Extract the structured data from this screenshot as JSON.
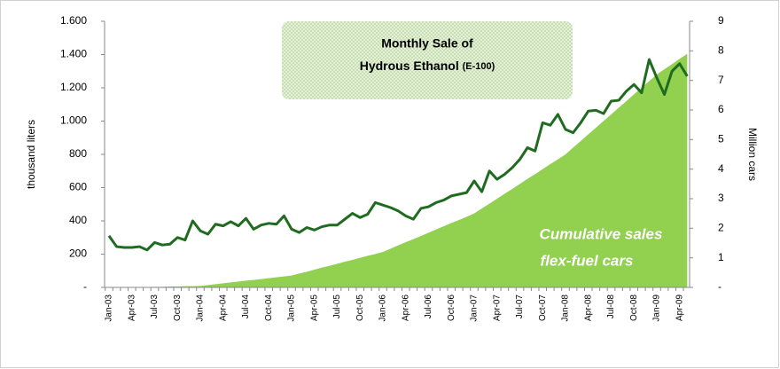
{
  "chart_data": {
    "type": "line",
    "title": [
      "Monthly Sale of",
      "Hydrous Ethanol",
      "(E-100)"
    ],
    "annotation": [
      "Cumulative sales",
      "flex-fuel cars"
    ],
    "ylabel": "thousand liters",
    "y2label": "Million cars",
    "categories": [
      "Jan-03",
      null,
      null,
      "Apr-03",
      null,
      null,
      "Jul-03",
      null,
      null,
      "Oct-03",
      null,
      null,
      "Jan-04",
      null,
      null,
      "Apr-04",
      null,
      null,
      "Jul-04",
      null,
      null,
      "Oct-04",
      null,
      null,
      "Jan-05",
      null,
      null,
      "Apr-05",
      null,
      null,
      "Jul-05",
      null,
      null,
      "Oct-05",
      null,
      null,
      "Jan-06",
      null,
      null,
      "Apr-06",
      null,
      null,
      "Jul-06",
      null,
      null,
      "Oct-06",
      null,
      null,
      "Jan-07",
      null,
      null,
      "Apr-07",
      null,
      null,
      "Jul-07",
      null,
      null,
      "Oct-07",
      null,
      null,
      "Jan-08",
      null,
      null,
      "Apr-08",
      null,
      null,
      "Jul-08",
      null,
      null,
      "Oct-08",
      null,
      null,
      "Jan-09",
      null,
      null,
      "Apr-09",
      null
    ],
    "series": [
      {
        "name": "Cumulative sales flex-fuel cars",
        "kind": "area",
        "axis": "y2",
        "color": "#92d050",
        "values": [
          0,
          0,
          0,
          0,
          0.01,
          0.01,
          0.02,
          0.02,
          0.03,
          0.03,
          0.04,
          0.04,
          0.05,
          0.08,
          0.11,
          0.14,
          0.17,
          0.2,
          0.23,
          0.25,
          0.28,
          0.31,
          0.34,
          0.37,
          0.4,
          0.47,
          0.53,
          0.6,
          0.67,
          0.73,
          0.8,
          0.87,
          0.93,
          1.0,
          1.07,
          1.13,
          1.2,
          1.31,
          1.42,
          1.53,
          1.63,
          1.74,
          1.85,
          1.96,
          2.07,
          2.18,
          2.28,
          2.39,
          2.5,
          2.67,
          2.83,
          3.0,
          3.17,
          3.33,
          3.5,
          3.67,
          3.83,
          4.0,
          4.17,
          4.33,
          4.5,
          4.73,
          4.95,
          5.18,
          5.4,
          5.63,
          5.85,
          6.08,
          6.3,
          6.53,
          6.75,
          6.98,
          7.2,
          7.38,
          7.55,
          7.73,
          7.9
        ]
      },
      {
        "name": "Monthly Sale of Hydrous Ethanol (E-100)",
        "kind": "line",
        "axis": "y",
        "color": "#1f6b1f",
        "values": [
          310,
          245,
          240,
          240,
          245,
          225,
          270,
          255,
          260,
          300,
          285,
          400,
          340,
          320,
          380,
          370,
          395,
          370,
          415,
          350,
          375,
          385,
          380,
          430,
          350,
          330,
          360,
          345,
          365,
          375,
          375,
          410,
          445,
          420,
          440,
          510,
          495,
          480,
          460,
          430,
          410,
          475,
          485,
          510,
          525,
          550,
          560,
          570,
          640,
          575,
          700,
          650,
          680,
          720,
          770,
          840,
          820,
          990,
          975,
          1040,
          950,
          930,
          990,
          1060,
          1065,
          1045,
          1120,
          1125,
          1180,
          1220,
          1170,
          1370,
          1260,
          1160,
          1300,
          1345,
          1270
        ]
      }
    ],
    "ylim": [
      0,
      1600
    ],
    "yticks": [
      {
        "value": 0,
        "label": "-"
      },
      200,
      400,
      600,
      800,
      {
        "value": 1000,
        "label": "1.000"
      },
      {
        "value": 1200,
        "label": "1.200"
      },
      {
        "value": 1400,
        "label": "1.400"
      },
      {
        "value": 1600,
        "label": "1.600"
      }
    ],
    "y2lim": [
      0,
      9
    ],
    "y2ticks": [
      {
        "value": 0,
        "label": "-"
      },
      1,
      2,
      3,
      4,
      5,
      6,
      7,
      8,
      9
    ]
  }
}
